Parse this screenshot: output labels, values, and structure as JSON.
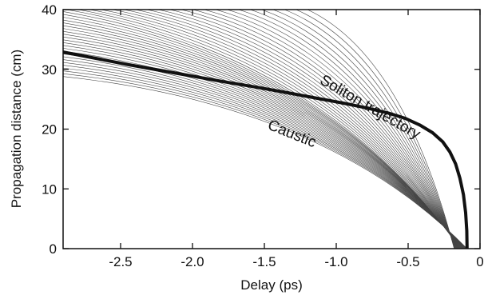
{
  "chart_data": {
    "type": "line",
    "title": "",
    "xlabel": "Delay (ps)",
    "ylabel": "Propagation distance (cm)",
    "xlim": [
      -2.9,
      0
    ],
    "ylim": [
      0,
      40
    ],
    "x_ticks": [
      -2.5,
      -2.0,
      -1.5,
      -1.0,
      -0.5,
      0
    ],
    "x_tick_labels": [
      "-2.5",
      "-2.0",
      "-1.5",
      "-1.0",
      "-0.5",
      "0"
    ],
    "y_ticks": [
      0,
      10,
      20,
      30,
      40
    ],
    "y_tick_labels": [
      "0",
      "10",
      "20",
      "30",
      "40"
    ],
    "grid": false,
    "colors": {
      "axes": "#111111",
      "rays": "#444444",
      "trajectory": "#111111"
    },
    "annotations": [
      {
        "text": "Soliton trajectory",
        "x": -0.78,
        "y": 23.0,
        "rotation_deg": 30
      },
      {
        "text": "Caustic",
        "x": -1.32,
        "y": 18.5,
        "rotation_deg": 22
      }
    ],
    "ray_fan": {
      "count": 46,
      "description_source": "thin straight lines tangent to the soliton trajectory, launched from the caustic region toward the lower right",
      "origin_x": -0.09,
      "origin_y": 0,
      "end_x_at_top": [
        -2.9,
        -1.2
      ],
      "end_y_at_left": [
        28.8,
        40
      ]
    },
    "series": [
      {
        "x": [
          -0.09,
          -0.092,
          -0.1,
          -0.115,
          -0.14,
          -0.17,
          -0.21,
          -0.26,
          -0.33,
          -0.42,
          -0.52,
          -0.64,
          -0.78,
          -0.94,
          -1.12,
          -1.32,
          -1.55,
          -1.8,
          -2.1,
          -2.45,
          -2.9
        ],
        "y": [
          0,
          3,
          6,
          9,
          11.8,
          14.2,
          16.2,
          17.9,
          19.4,
          20.7,
          21.8,
          22.7,
          23.5,
          24.3,
          25.1,
          26.0,
          27.0,
          28.0,
          29.3,
          30.8,
          32.9
        ]
      }
    ]
  }
}
